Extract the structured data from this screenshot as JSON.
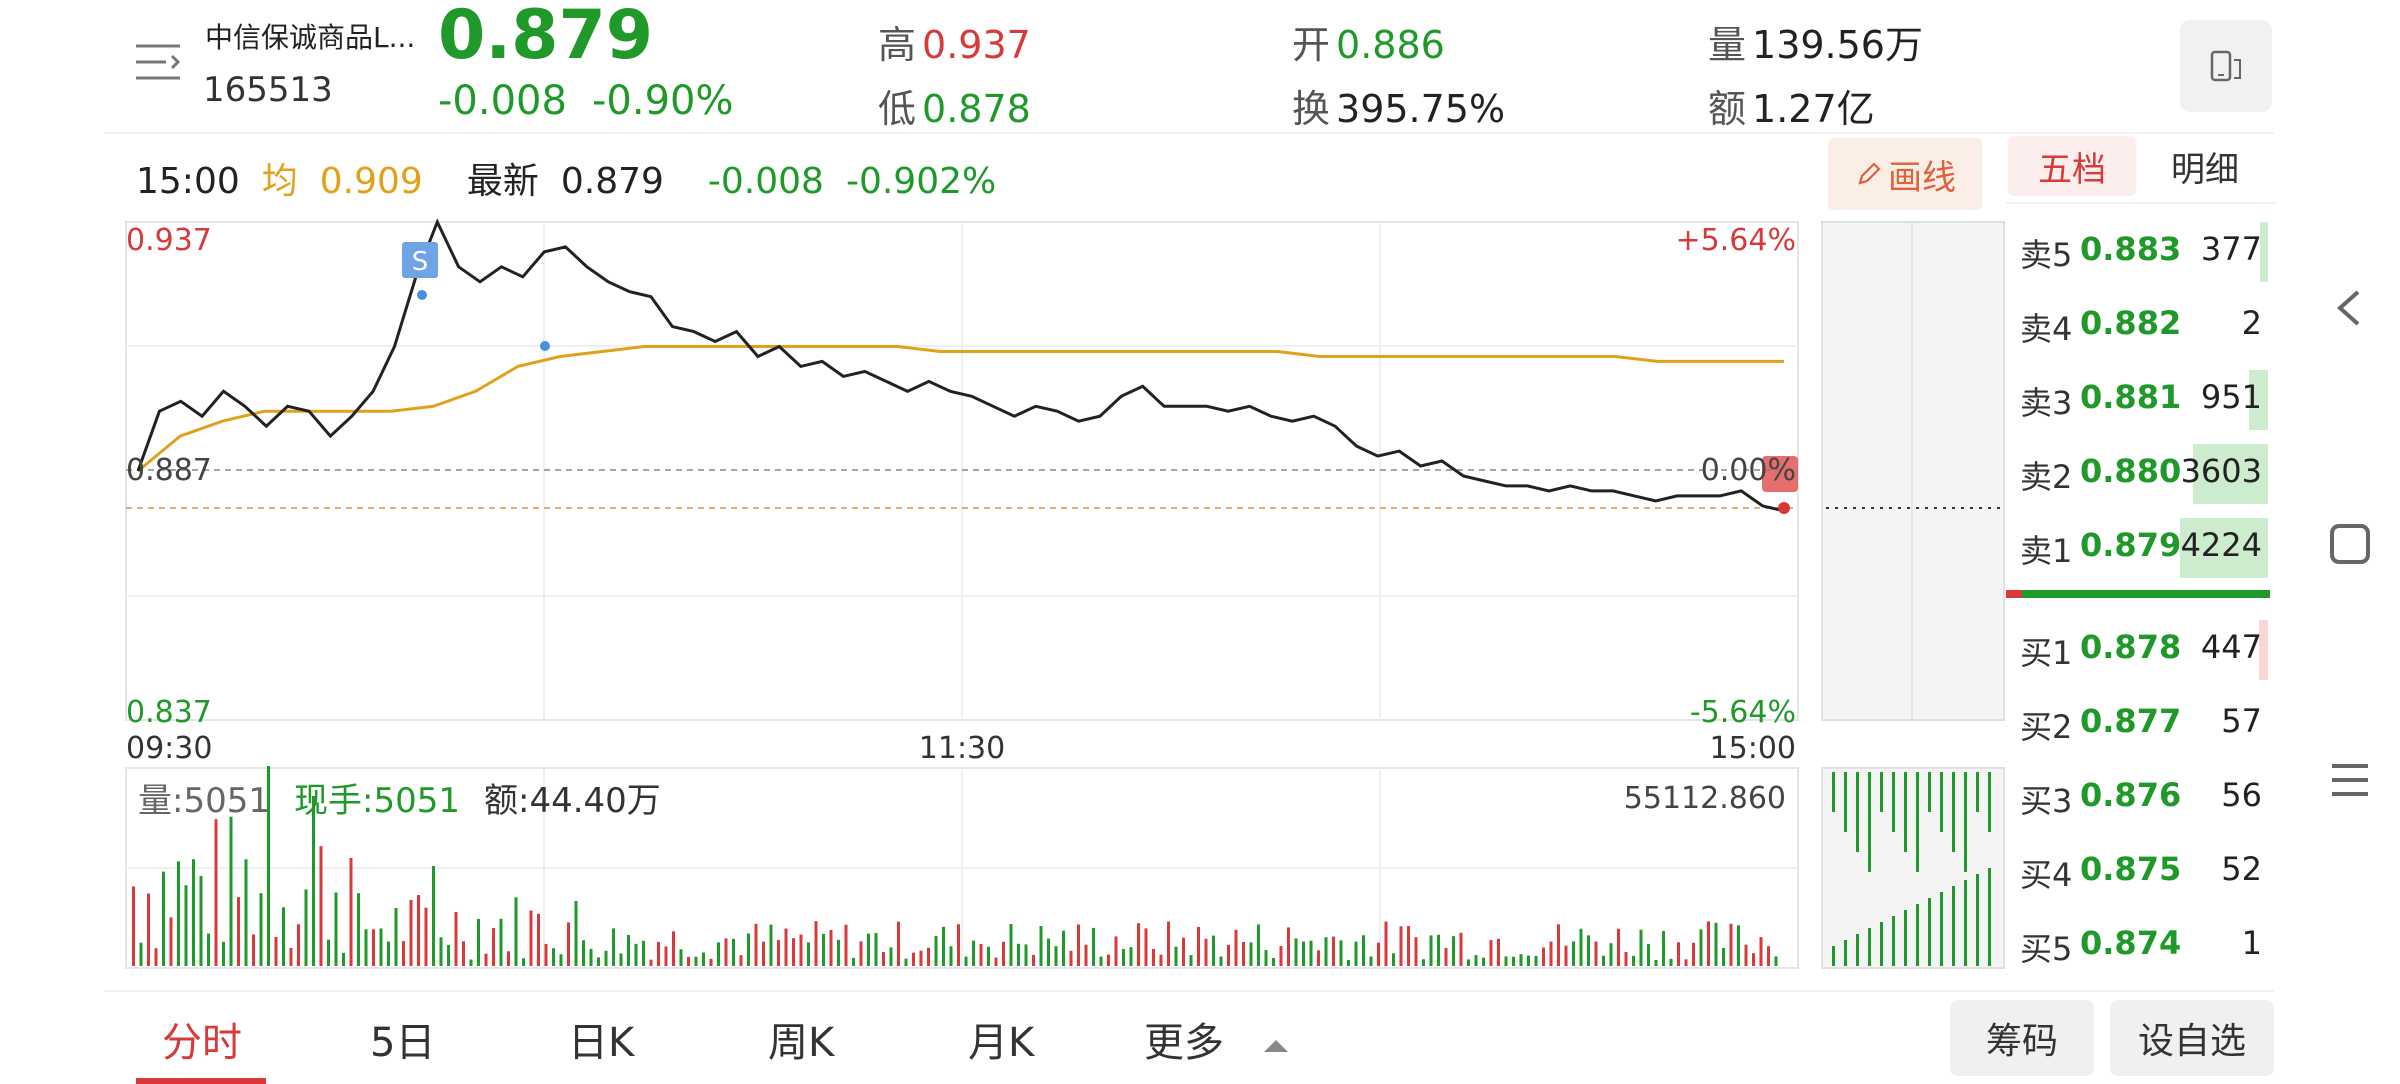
{
  "stock": {
    "name": "中信保诚商品L...",
    "code": "165513",
    "price": "0.879",
    "change": "-0.008",
    "change_pct": "-0.90%"
  },
  "stats": {
    "high_label": "高",
    "high": "0.937",
    "low_label": "低",
    "low": "0.878",
    "open_label": "开",
    "open": "0.886",
    "turnover_label": "换",
    "turnover": "395.75%",
    "volume_label": "量",
    "volume": "139.56万",
    "amount_label": "额",
    "amount": "1.27亿"
  },
  "info_line": {
    "time": "15:00",
    "avg_label": "均",
    "avg": "0.909",
    "latest_label": "最新",
    "latest": "0.879",
    "change": "-0.008",
    "change_pct": "-0.902%"
  },
  "draw_button": "画线",
  "chart": {
    "y_top": "0.937",
    "y_mid": "0.887",
    "y_bottom": "0.837",
    "pct_top": "+5.64%",
    "pct_mid": "0.00%",
    "pct_bottom": "-5.64%",
    "x_start": "09:30",
    "x_mid": "11:30",
    "x_end": "15:00",
    "marker": "S",
    "colors": {
      "price_line": "#222222",
      "avg_line": "#e0a21a",
      "up": "#d8393a",
      "down": "#1f9a2a"
    }
  },
  "chart_data": {
    "type": "line",
    "x_range": [
      "09:30",
      "15:00"
    ],
    "ylim": [
      0.837,
      0.937
    ],
    "series": [],
    "price": [
      0.887,
      0.899,
      0.901,
      0.898,
      0.903,
      0.9,
      0.896,
      0.9,
      0.899,
      0.894,
      0.898,
      0.903,
      0.912,
      0.926,
      0.937,
      0.928,
      0.925,
      0.928,
      0.926,
      0.931,
      0.932,
      0.928,
      0.925,
      0.923,
      0.922,
      0.916,
      0.915,
      0.913,
      0.915,
      0.91,
      0.912,
      0.908,
      0.909,
      0.906,
      0.907,
      0.905,
      0.903,
      0.905,
      0.903,
      0.902,
      0.9,
      0.898,
      0.9,
      0.899,
      0.897,
      0.898,
      0.902,
      0.904,
      0.9,
      0.9,
      0.9,
      0.899,
      0.9,
      0.898,
      0.897,
      0.898,
      0.896,
      0.892,
      0.89,
      0.891,
      0.888,
      0.889,
      0.886,
      0.885,
      0.884,
      0.884,
      0.883,
      0.884,
      0.883,
      0.883,
      0.882,
      0.881,
      0.882,
      0.882,
      0.882,
      0.883,
      0.88,
      0.879
    ],
    "avg": [
      0.887,
      0.894,
      0.897,
      0.899,
      0.899,
      0.899,
      0.899,
      0.9,
      0.903,
      0.908,
      0.91,
      0.911,
      0.912,
      0.912,
      0.912,
      0.912,
      0.912,
      0.912,
      0.912,
      0.911,
      0.911,
      0.911,
      0.911,
      0.911,
      0.911,
      0.911,
      0.911,
      0.911,
      0.91,
      0.91,
      0.91,
      0.91,
      0.91,
      0.91,
      0.91,
      0.91,
      0.909,
      0.909,
      0.909,
      0.909
    ],
    "volume_label": "量:5051",
    "current_hand_label": "现手:5051",
    "amount_label": "额:44.40万",
    "volume_max": "55112.860"
  },
  "order_book": {
    "tab_five": "五档",
    "tab_detail": "明细",
    "asks": [
      {
        "label": "卖5",
        "price": "0.883",
        "vol": "377",
        "ratio": 0.09
      },
      {
        "label": "卖4",
        "price": "0.882",
        "vol": "2",
        "ratio": 0.0
      },
      {
        "label": "卖3",
        "price": "0.881",
        "vol": "951",
        "ratio": 0.22
      },
      {
        "label": "卖2",
        "price": "0.880",
        "vol": "3603",
        "ratio": 0.85
      },
      {
        "label": "卖1",
        "price": "0.879",
        "vol": "4224",
        "ratio": 1.0
      }
    ],
    "bids": [
      {
        "label": "买1",
        "price": "0.878",
        "vol": "447",
        "ratio": 0.1
      },
      {
        "label": "买2",
        "price": "0.877",
        "vol": "57",
        "ratio": 0.0
      },
      {
        "label": "买3",
        "price": "0.876",
        "vol": "56",
        "ratio": 0.0
      },
      {
        "label": "买4",
        "price": "0.875",
        "vol": "52",
        "ratio": 0.0
      },
      {
        "label": "买5",
        "price": "0.874",
        "vol": "1",
        "ratio": 0.0
      }
    ]
  },
  "tabs": {
    "fenshi": "分时",
    "five_day": "5日",
    "day_k": "日K",
    "week_k": "周K",
    "month_k": "月K",
    "more": "更多"
  },
  "buttons": {
    "chips": "筹码",
    "add_watch": "设自选"
  }
}
